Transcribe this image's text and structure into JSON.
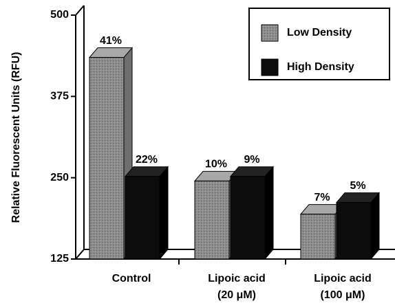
{
  "chart_data": {
    "type": "bar3d",
    "y_label": "Relative Fluorescent Units (RFU)",
    "categories": [
      [
        "Control"
      ],
      [
        "Lipoic acid",
        "(20 μM)"
      ],
      [
        "Lipoic acid",
        "(100 μM)"
      ]
    ],
    "series": [
      {
        "name": "Low Density",
        "color": "#8c8c8c",
        "values": [
          435,
          245,
          194
        ],
        "percent_labels": [
          "41%",
          "10%",
          "7%"
        ]
      },
      {
        "name": "High Density",
        "color": "#0c0c0c",
        "values": [
          252,
          252,
          212
        ],
        "percent_labels": [
          "22%",
          "9%",
          "5%"
        ]
      }
    ],
    "ylim": [
      125,
      500
    ],
    "yticks": [
      125,
      250,
      375,
      500
    ],
    "legend": "upper right"
  }
}
